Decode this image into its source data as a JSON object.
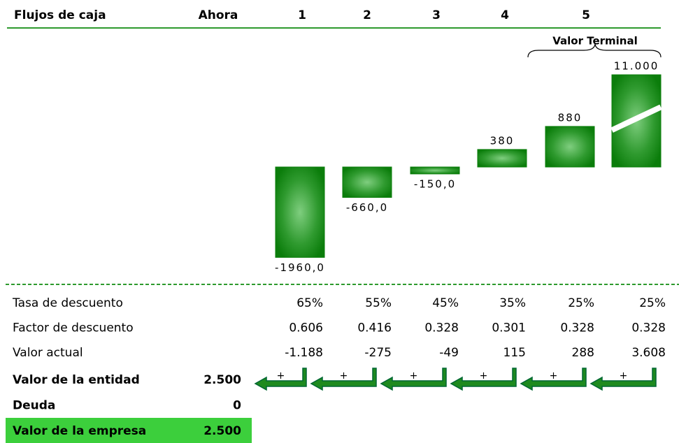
{
  "header": {
    "title": "Flujos de caja",
    "columns": [
      "Ahora",
      "1",
      "2",
      "3",
      "4",
      "5"
    ]
  },
  "chart_data": {
    "type": "bar",
    "annotation": "Valor Terminal",
    "values": [
      -1960,
      -660,
      -150,
      380,
      880,
      11000
    ],
    "value_labels": [
      "-1960,0",
      "-660,0",
      "-150,0",
      "380",
      "880",
      "11.000"
    ],
    "color": "#0b7d0b",
    "ylim": [
      -2000,
      2000
    ]
  },
  "table": {
    "rows": [
      {
        "label": "Tasa de descuento",
        "values": [
          "65%",
          "55%",
          "45%",
          "35%",
          "25%",
          "25%"
        ]
      },
      {
        "label": "Factor de descuento",
        "values": [
          "0.606",
          "0.416",
          "0.328",
          "0.301",
          "0.328",
          "0.328"
        ]
      },
      {
        "label": "Valor actual",
        "values": [
          "-1.188",
          "-275",
          "-49",
          "115",
          "288",
          "3.608"
        ]
      }
    ]
  },
  "arrow_label": "+",
  "summary": [
    {
      "label": "Valor de la entidad",
      "value": "2.500"
    },
    {
      "label": "Deuda",
      "value": "0"
    },
    {
      "label": "Valor de la empresa",
      "value": "2.500"
    }
  ]
}
